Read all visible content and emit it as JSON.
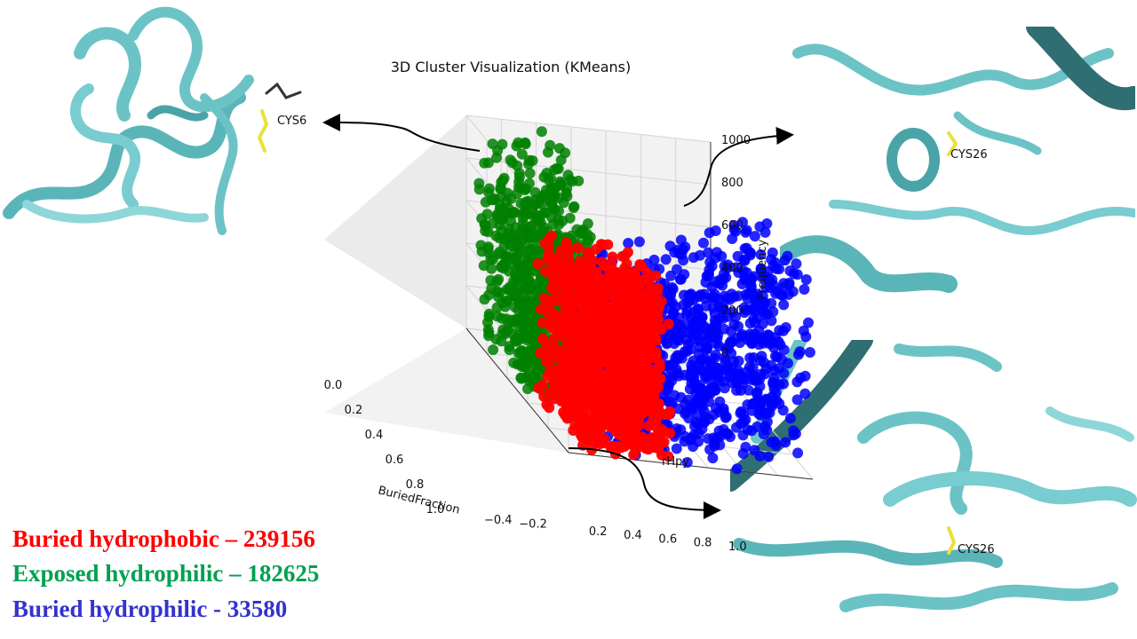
{
  "chart_data": {
    "type": "scatter",
    "projection": "3d",
    "title": "3D Cluster Visualization (KMeans)",
    "xlabel": "BuriedFraction",
    "ylabel": "rHpy",
    "zlabel": "Frequency",
    "xlim": [
      0.0,
      1.0
    ],
    "ylim": [
      -0.4,
      1.0
    ],
    "zlim": [
      0,
      1000
    ],
    "x_ticks": [
      "0.0",
      "0.2",
      "0.4",
      "0.6",
      "0.8",
      "1.0"
    ],
    "y_ticks": [
      "−0.4",
      "−0.2",
      "0.2",
      "0.4",
      "0.6",
      "0.8",
      "1.0"
    ],
    "z_ticks": [
      "0",
      "200",
      "400",
      "600",
      "800",
      "1000"
    ],
    "grid": true,
    "series": [
      {
        "name": "Buried hydrophobic",
        "color": "#ff0000",
        "count": 239156
      },
      {
        "name": "Exposed hydrophilic",
        "color": "#008000",
        "count": 182625
      },
      {
        "name": "Buried hydrophilic",
        "color": "#0000ff",
        "count": 33580
      }
    ]
  },
  "legend": [
    {
      "text": "Buried hydrophobic – 239156",
      "color": "#ff0000"
    },
    {
      "text": "Exposed hydrophilic – 182625",
      "color": "#00a050"
    },
    {
      "text": "Buried hydrophilic - 33580",
      "color": "#3333cc"
    }
  ],
  "structures": [
    {
      "label": "CYS6"
    },
    {
      "label": "CYS26"
    },
    {
      "label": "CYS26"
    }
  ],
  "colors": {
    "ribbon": "#6cc3c6",
    "ribbon_dark": "#2f6e72",
    "sulfur": "#e8e23a"
  }
}
